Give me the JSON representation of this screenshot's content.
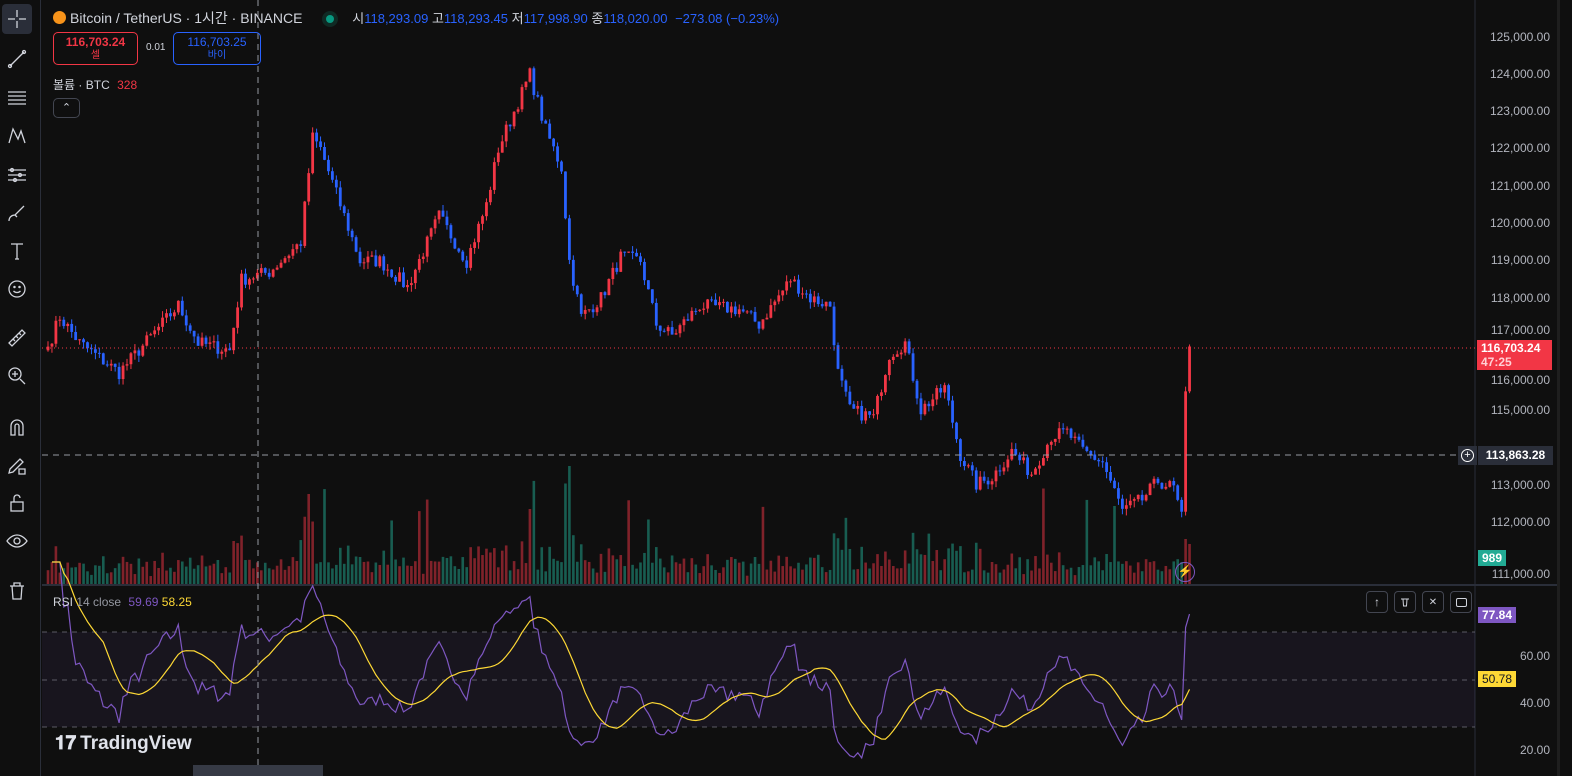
{
  "header": {
    "symbol": "Bitcoin / TetherUS · 1시간 · BINANCE",
    "o_label": "시",
    "o": "118,293.09",
    "h_label": "고",
    "h": "118,293.45",
    "l_label": "저",
    "l": "117,998.90",
    "c_label": "종",
    "c": "118,020.00",
    "change": "−273.08 (−0.23%)"
  },
  "trade": {
    "sell_price": "116,703.24",
    "sell_label": "셀",
    "spread": "0.01",
    "buy_price": "116,703.25",
    "buy_label": "바이"
  },
  "volume_legend": {
    "label": "볼륨 · BTC",
    "value": "328"
  },
  "rsi_legend": {
    "label": "RSI",
    "params": "14 close",
    "rsi": "59.69",
    "ma": "58.25"
  },
  "price_axis": [
    "125,000.00",
    "124,000.00",
    "123,000.00",
    "122,000.00",
    "121,000.00",
    "120,000.00",
    "119,000.00",
    "118,000.00",
    "117,000.00",
    "116,000.00",
    "115,000.00",
    "113,000.00",
    "112,000.00",
    "111,000.00"
  ],
  "rsi_axis": [
    "60.00",
    "40.00",
    "20.00"
  ],
  "tags": {
    "last_price": "116,703.24",
    "countdown": "47:25",
    "crosshair_price": "113,863.28",
    "volume": "989",
    "rsi": "77.84",
    "rsi_ma": "50.78"
  },
  "branding": "TradingView",
  "colors": {
    "up": "#f23645",
    "down": "#2962ff",
    "rsi": "#7e57c2",
    "rsi_ma": "#fdd835",
    "vol_up": "#22ab94"
  },
  "chart_data": {
    "type": "candlestick",
    "symbol": "BTCUSDT",
    "interval": "1h",
    "ylim": [
      110700,
      125300
    ],
    "price_path": [
      [
        0,
        116700
      ],
      [
        3,
        117500
      ],
      [
        8,
        116800
      ],
      [
        18,
        116000
      ],
      [
        33,
        117800
      ],
      [
        38,
        116800
      ],
      [
        46,
        116600
      ],
      [
        49,
        118500
      ],
      [
        56,
        118700
      ],
      [
        64,
        119500
      ],
      [
        67,
        122300
      ],
      [
        69,
        122000
      ],
      [
        74,
        120500
      ],
      [
        79,
        119000
      ],
      [
        84,
        119000
      ],
      [
        91,
        118300
      ],
      [
        99,
        120200
      ],
      [
        106,
        119000
      ],
      [
        111,
        120500
      ],
      [
        114,
        122000
      ],
      [
        118,
        123000
      ],
      [
        122,
        124000
      ],
      [
        126,
        122500
      ],
      [
        130,
        121500
      ],
      [
        132,
        119000
      ],
      [
        135,
        117500
      ],
      [
        140,
        118000
      ],
      [
        145,
        119100
      ],
      [
        150,
        119000
      ],
      [
        154,
        117300
      ],
      [
        158,
        117000
      ],
      [
        165,
        117800
      ],
      [
        175,
        117700
      ],
      [
        180,
        117300
      ],
      [
        188,
        118500
      ],
      [
        193,
        118000
      ],
      [
        198,
        117800
      ],
      [
        200,
        116000
      ],
      [
        203,
        115000
      ],
      [
        209,
        114800
      ],
      [
        213,
        116500
      ],
      [
        217,
        116800
      ],
      [
        221,
        115000
      ],
      [
        227,
        115600
      ],
      [
        231,
        113800
      ],
      [
        235,
        113000
      ],
      [
        239,
        113200
      ],
      [
        244,
        113900
      ],
      [
        249,
        113300
      ],
      [
        254,
        114300
      ],
      [
        258,
        114400
      ],
      [
        262,
        113900
      ],
      [
        267,
        113600
      ],
      [
        272,
        112300
      ],
      [
        277,
        112600
      ],
      [
        281,
        113100
      ],
      [
        285,
        112900
      ],
      [
        287,
        112100
      ],
      [
        288,
        115500
      ],
      [
        289,
        116703
      ]
    ]
  }
}
